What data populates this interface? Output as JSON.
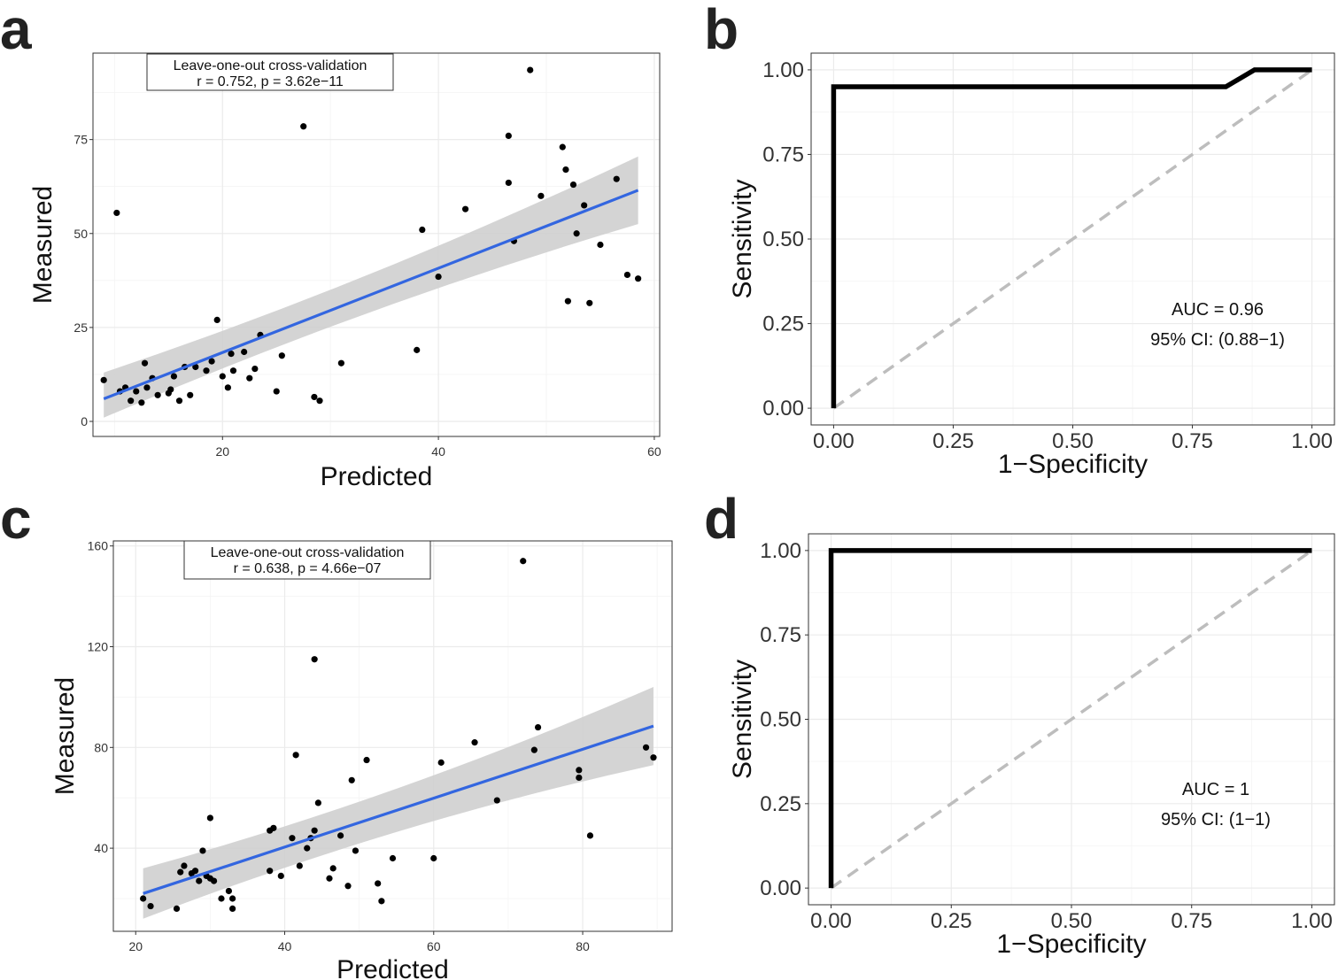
{
  "chart_data": [
    {
      "id": "a",
      "type": "scatter",
      "panel_label": "a",
      "xlabel": "Predicted",
      "ylabel": "Measured",
      "xlim": [
        8,
        60.5
      ],
      "ylim": [
        -4,
        98
      ],
      "xticks": [
        20,
        40,
        60
      ],
      "yticks": [
        0,
        25,
        50,
        75
      ],
      "annotation": [
        "Leave-one-out cross-validation",
        "r = 0.752, p = 3.62e−11"
      ],
      "fit": {
        "x": [
          9,
          58.5
        ],
        "y": [
          6,
          61.5
        ],
        "ci_lower": [
          1,
          52.5
        ],
        "ci_upper": [
          13,
          70.5
        ]
      },
      "points": [
        [
          9,
          11
        ],
        [
          10.2,
          55.5
        ],
        [
          10.5,
          8
        ],
        [
          11,
          9
        ],
        [
          11.5,
          5.5
        ],
        [
          12,
          8
        ],
        [
          12.5,
          5
        ],
        [
          12.8,
          15.5
        ],
        [
          13,
          9
        ],
        [
          13.5,
          11.5
        ],
        [
          14,
          7
        ],
        [
          15,
          7.5
        ],
        [
          15.2,
          8.5
        ],
        [
          15.5,
          12
        ],
        [
          16,
          5.5
        ],
        [
          16.5,
          14.5
        ],
        [
          17,
          7
        ],
        [
          17.5,
          14.5
        ],
        [
          18.5,
          13.5
        ],
        [
          19,
          16
        ],
        [
          19.5,
          27
        ],
        [
          20,
          12
        ],
        [
          20.5,
          9
        ],
        [
          20.8,
          18
        ],
        [
          21,
          13.5
        ],
        [
          22,
          18.5
        ],
        [
          22.5,
          11.5
        ],
        [
          23,
          14
        ],
        [
          23.5,
          23
        ],
        [
          25,
          8
        ],
        [
          25.5,
          17.5
        ],
        [
          27.5,
          78.5
        ],
        [
          28.5,
          6.5
        ],
        [
          29,
          5.5
        ],
        [
          31,
          15.5
        ],
        [
          38,
          19
        ],
        [
          38.5,
          51
        ],
        [
          40,
          38.5
        ],
        [
          42.5,
          56.5
        ],
        [
          46.5,
          63.5
        ],
        [
          46.5,
          76
        ],
        [
          47,
          48
        ],
        [
          48.5,
          93.5
        ],
        [
          49.5,
          60
        ],
        [
          51.5,
          73
        ],
        [
          51.8,
          67
        ],
        [
          52,
          32
        ],
        [
          52.5,
          63
        ],
        [
          52.8,
          50
        ],
        [
          53.5,
          57.5
        ],
        [
          54,
          31.5
        ],
        [
          55,
          47
        ],
        [
          56.5,
          64.5
        ],
        [
          57.5,
          39
        ],
        [
          58.5,
          38
        ]
      ]
    },
    {
      "id": "b",
      "type": "line",
      "panel_label": "b",
      "xlabel": "1−Specificity",
      "ylabel": "Sensitivity",
      "xlim": [
        0,
        1
      ],
      "ylim": [
        0,
        1
      ],
      "xticks": [
        "0.00",
        "0.25",
        "0.50",
        "0.75",
        "1.00"
      ],
      "yticks": [
        "0.00",
        "0.25",
        "0.50",
        "0.75",
        "1.00"
      ],
      "annotation": [
        "AUC = 0.96",
        "95% CI: (0.88−1)"
      ],
      "roc": [
        [
          0,
          0
        ],
        [
          0,
          0.95
        ],
        [
          0.82,
          0.95
        ],
        [
          0.88,
          1
        ],
        [
          1,
          1
        ]
      ],
      "reference_line": [
        [
          0,
          0
        ],
        [
          1,
          1
        ]
      ]
    },
    {
      "id": "c",
      "type": "scatter",
      "panel_label": "c",
      "xlabel": "Predicted",
      "ylabel": "Measured",
      "xlim": [
        17,
        92
      ],
      "ylim": [
        7,
        162
      ],
      "xticks": [
        20,
        40,
        60,
        80
      ],
      "yticks": [
        40,
        80,
        120,
        160
      ],
      "annotation": [
        "Leave-one-out cross-validation",
        "r = 0.638, p = 4.66e−07"
      ],
      "fit": {
        "x": [
          21,
          89.5
        ],
        "y": [
          22,
          88.5
        ],
        "ci_lower": [
          12,
          73
        ],
        "ci_upper": [
          32,
          104
        ]
      },
      "points": [
        [
          21,
          20
        ],
        [
          22,
          17
        ],
        [
          25.5,
          16
        ],
        [
          26,
          30.5
        ],
        [
          26.5,
          33
        ],
        [
          27.5,
          30
        ],
        [
          28,
          31
        ],
        [
          28.5,
          27
        ],
        [
          29,
          39
        ],
        [
          29.5,
          29
        ],
        [
          30,
          52
        ],
        [
          30,
          28
        ],
        [
          30.5,
          27
        ],
        [
          31.5,
          20
        ],
        [
          32.5,
          23
        ],
        [
          33,
          20
        ],
        [
          33,
          16
        ],
        [
          38,
          31
        ],
        [
          38,
          47
        ],
        [
          38.5,
          48
        ],
        [
          39.5,
          29
        ],
        [
          41,
          44
        ],
        [
          41.5,
          77
        ],
        [
          42,
          33
        ],
        [
          43,
          40
        ],
        [
          43.5,
          44
        ],
        [
          44,
          47
        ],
        [
          44,
          115
        ],
        [
          44.5,
          58
        ],
        [
          46,
          28
        ],
        [
          46.5,
          32
        ],
        [
          47.5,
          45
        ],
        [
          48.5,
          25
        ],
        [
          49,
          67
        ],
        [
          49.5,
          39
        ],
        [
          51,
          75
        ],
        [
          52.5,
          26
        ],
        [
          53,
          19
        ],
        [
          54.5,
          36
        ],
        [
          60,
          36
        ],
        [
          61,
          74
        ],
        [
          65.5,
          82
        ],
        [
          68.5,
          59
        ],
        [
          72,
          154
        ],
        [
          73.5,
          79
        ],
        [
          74,
          88
        ],
        [
          79.5,
          68
        ],
        [
          79.5,
          71
        ],
        [
          81,
          45
        ],
        [
          88.5,
          80
        ],
        [
          89.5,
          76
        ]
      ]
    },
    {
      "id": "d",
      "type": "line",
      "panel_label": "d",
      "xlabel": "1−Specificity",
      "ylabel": "Sensitivity",
      "xlim": [
        0,
        1
      ],
      "ylim": [
        0,
        1
      ],
      "xticks": [
        "0.00",
        "0.25",
        "0.50",
        "0.75",
        "1.00"
      ],
      "yticks": [
        "0.00",
        "0.25",
        "0.50",
        "0.75",
        "1.00"
      ],
      "annotation": [
        "AUC = 1",
        "95% CI: (1−1)"
      ],
      "roc": [
        [
          0,
          0
        ],
        [
          0,
          1
        ],
        [
          1,
          1
        ]
      ],
      "reference_line": [
        [
          0,
          0
        ],
        [
          1,
          1
        ]
      ]
    }
  ]
}
